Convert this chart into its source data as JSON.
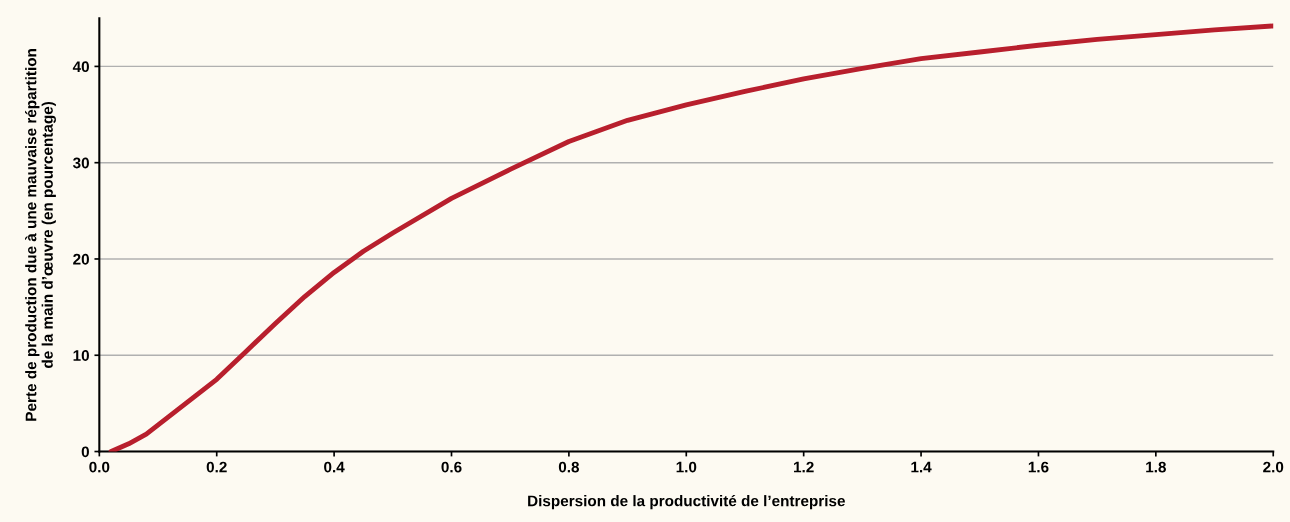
{
  "chart_data": {
    "type": "line",
    "xlabel": "Dispersion de la productivité de l’entreprise",
    "ylabel": "Perte de production due à une mauvaise répartition\nde la main d’œuvre (en pourcentage)",
    "series": [
      {
        "color": "#b81f2d",
        "x": [
          0.02,
          0.05,
          0.08,
          0.12,
          0.16,
          0.2,
          0.25,
          0.3,
          0.35,
          0.4,
          0.45,
          0.5,
          0.6,
          0.7,
          0.8,
          0.9,
          1.0,
          1.1,
          1.2,
          1.3,
          1.4,
          1.5,
          1.6,
          1.7,
          1.8,
          1.9,
          2.0
        ],
        "values": [
          0,
          0.8,
          1.8,
          3.7,
          5.6,
          7.5,
          10.4,
          13.3,
          16.1,
          18.6,
          20.8,
          22.7,
          26.3,
          29.3,
          32.2,
          34.4,
          36.0,
          37.4,
          38.7,
          39.8,
          40.8,
          41.5,
          42.2,
          42.8,
          43.3,
          43.8,
          44.2
        ]
      }
    ],
    "xlim": [
      0,
      2.0
    ],
    "xticks": [
      {
        "value": 0,
        "label": "0.0"
      },
      0.2,
      0.4,
      0.6,
      0.8,
      {
        "value": 1,
        "label": "1.0"
      },
      1.2,
      1.4,
      1.6,
      1.8,
      {
        "value": 2,
        "label": "2.0"
      }
    ],
    "ylim": [
      0,
      45
    ],
    "yticks": [
      0,
      10,
      20,
      30,
      40
    ],
    "grid": "y",
    "legend": false,
    "marker": "none",
    "line_style": "solid"
  }
}
